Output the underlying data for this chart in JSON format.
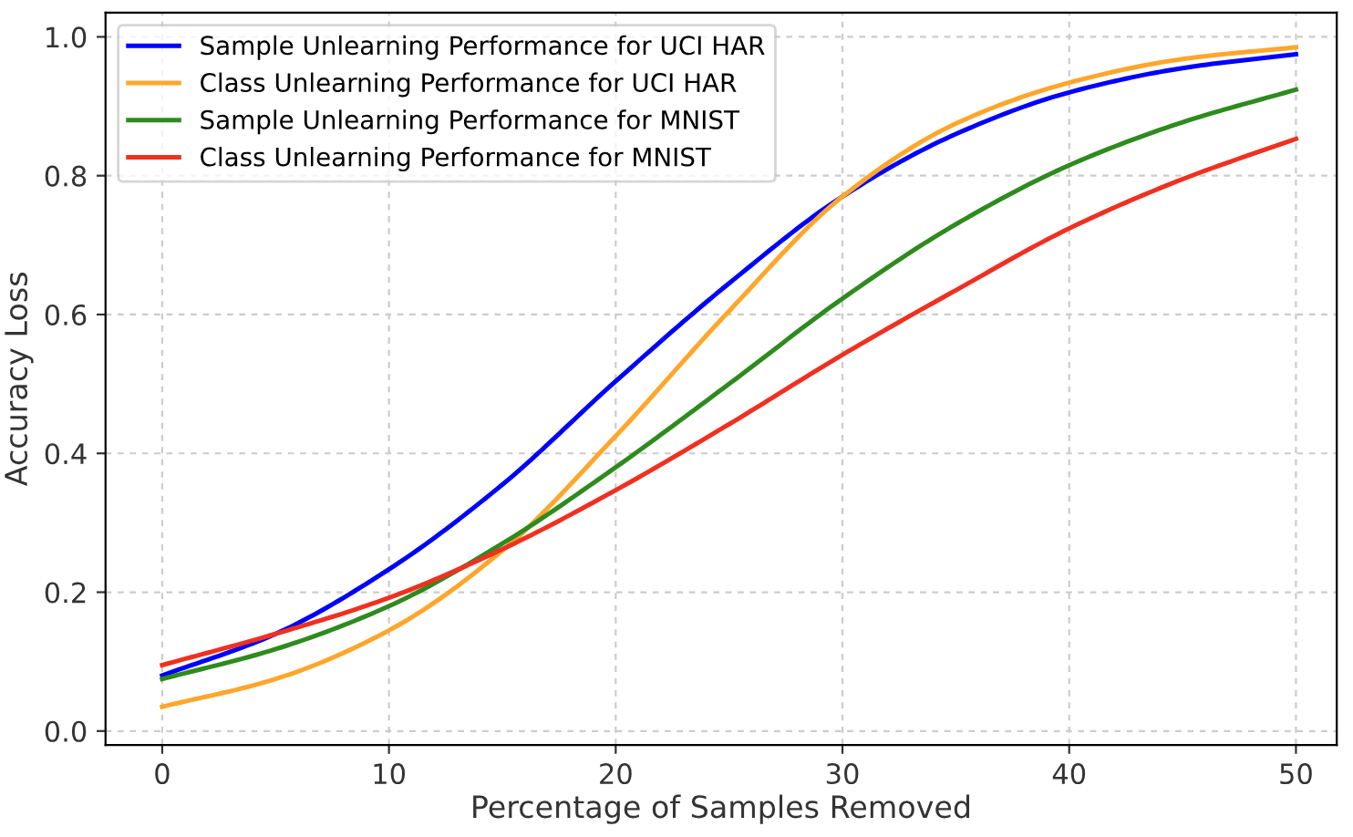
{
  "chart_data": {
    "type": "line",
    "xlabel": "Percentage of Samples Removed",
    "ylabel": "Accuracy Loss",
    "x": [
      0,
      5,
      10,
      15,
      20,
      25,
      30,
      35,
      40,
      45,
      50
    ],
    "series": [
      {
        "name": "Sample Unlearning Performance for UCI HAR",
        "color": "#0000ff",
        "values": [
          0.08,
          0.14,
          0.233,
          0.355,
          0.504,
          0.645,
          0.77,
          0.86,
          0.92,
          0.955,
          0.975
        ]
      },
      {
        "name": "Class Unlearning Performance for UCI HAR",
        "color": "#ffa62b",
        "values": [
          0.035,
          0.075,
          0.145,
          0.26,
          0.425,
          0.605,
          0.77,
          0.875,
          0.934,
          0.968,
          0.985
        ]
      },
      {
        "name": "Sample Unlearning Performance for MNIST",
        "color": "#2e8b1e",
        "values": [
          0.075,
          0.118,
          0.18,
          0.27,
          0.38,
          0.5,
          0.623,
          0.73,
          0.815,
          0.877,
          0.924
        ]
      },
      {
        "name": "Class Unlearning Performance for MNIST",
        "color": "#f03020",
        "values": [
          0.095,
          0.14,
          0.192,
          0.262,
          0.347,
          0.442,
          0.542,
          0.635,
          0.724,
          0.795,
          0.853
        ]
      }
    ],
    "xlim": [
      -2.5,
      51.8
    ],
    "ylim": [
      -0.02,
      1.035
    ],
    "xticks": [
      0,
      10,
      20,
      30,
      40,
      50
    ],
    "yticks": [
      {
        "value": 0,
        "label": "0.0"
      },
      0.2,
      0.4,
      0.6,
      0.8,
      {
        "value": 1,
        "label": "1.0"
      }
    ],
    "grid": true,
    "legend": "top left",
    "line_style": "solid",
    "marker": "none"
  }
}
